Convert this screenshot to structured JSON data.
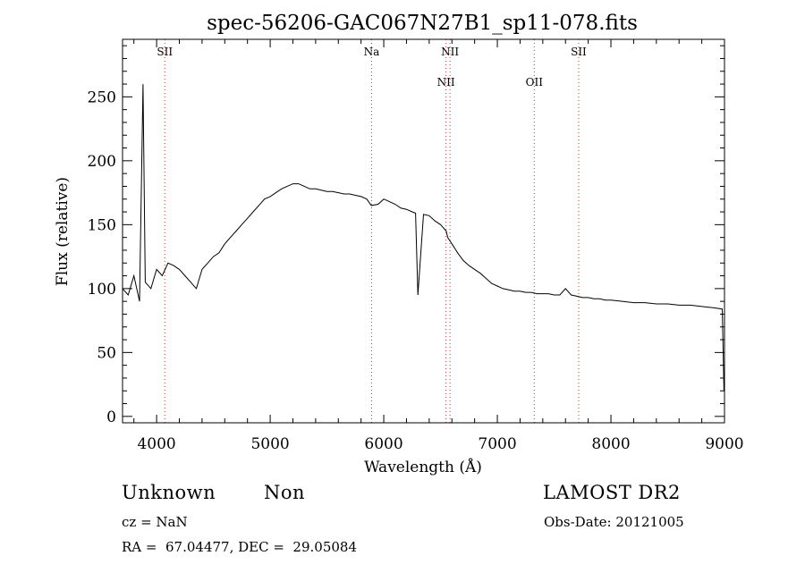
{
  "chart_data": {
    "type": "line",
    "title": "spec-56206-GAC067N27B1_sp11-078.fits",
    "xlabel": "Wavelength (Å)",
    "ylabel": "Flux (relative)",
    "xlim": [
      3700,
      9000
    ],
    "ylim": [
      -5,
      295
    ],
    "x_ticks": [
      4000,
      5000,
      6000,
      7000,
      8000,
      9000
    ],
    "y_ticks": [
      0,
      50,
      100,
      150,
      200,
      250
    ],
    "grid": false,
    "series": [
      {
        "x": [
          3700,
          3750,
          3800,
          3850,
          3880,
          3900,
          3950,
          4000,
          4050,
          4100,
          4150,
          4200,
          4250,
          4300,
          4350,
          4400,
          4450,
          4500,
          4550,
          4600,
          4650,
          4700,
          4750,
          4800,
          4850,
          4900,
          4950,
          5000,
          5050,
          5100,
          5150,
          5200,
          5250,
          5300,
          5350,
          5400,
          5450,
          5500,
          5550,
          5600,
          5650,
          5700,
          5750,
          5800,
          5850,
          5890,
          5950,
          6000,
          6050,
          6100,
          6150,
          6200,
          6250,
          6280,
          6300,
          6350,
          6400,
          6450,
          6500,
          6550,
          6563,
          6600,
          6650,
          6700,
          6750,
          6800,
          6850,
          6900,
          6950,
          7000,
          7050,
          7100,
          7150,
          7200,
          7250,
          7300,
          7350,
          7400,
          7450,
          7500,
          7550,
          7600,
          7650,
          7700,
          7750,
          7800,
          7850,
          7900,
          7950,
          8000,
          8100,
          8200,
          8300,
          8400,
          8500,
          8600,
          8700,
          8800,
          8900,
          8980,
          8995
        ],
        "y": [
          100,
          95,
          110,
          90,
          260,
          105,
          100,
          115,
          110,
          120,
          118,
          115,
          110,
          105,
          100,
          115,
          120,
          125,
          128,
          135,
          140,
          145,
          150,
          155,
          160,
          165,
          170,
          172,
          175,
          178,
          180,
          182,
          182,
          180,
          178,
          178,
          177,
          176,
          176,
          175,
          174,
          174,
          173,
          172,
          170,
          165,
          166,
          170,
          168,
          166,
          163,
          162,
          160,
          159,
          95,
          158,
          157,
          153,
          150,
          145,
          140,
          135,
          128,
          122,
          118,
          115,
          112,
          108,
          104,
          102,
          100,
          99,
          98,
          98,
          97,
          97,
          96,
          96,
          96,
          95,
          95,
          100,
          95,
          94,
          93,
          93,
          92,
          92,
          91,
          91,
          90,
          89,
          89,
          88,
          88,
          87,
          87,
          86,
          85,
          84,
          20
        ]
      }
    ],
    "annotations": [
      {
        "label": "SII",
        "x": 4072,
        "level": "top"
      },
      {
        "label": "Na",
        "x": 5893,
        "level": "top"
      },
      {
        "label": "NII",
        "x": 6583,
        "level": "top"
      },
      {
        "label": "NII",
        "x": 6548,
        "level": "second"
      },
      {
        "label": "OII",
        "x": 7325,
        "level": "second"
      },
      {
        "label": "SII",
        "x": 7716,
        "level": "top"
      }
    ]
  },
  "info": {
    "class": "Unknown",
    "subclass": "Non",
    "cz": "cz = NaN",
    "coords": "RA =  67.04477, DEC =  29.05084",
    "survey": "LAMOST DR2",
    "obs_date": "Obs-Date: 20121005"
  }
}
